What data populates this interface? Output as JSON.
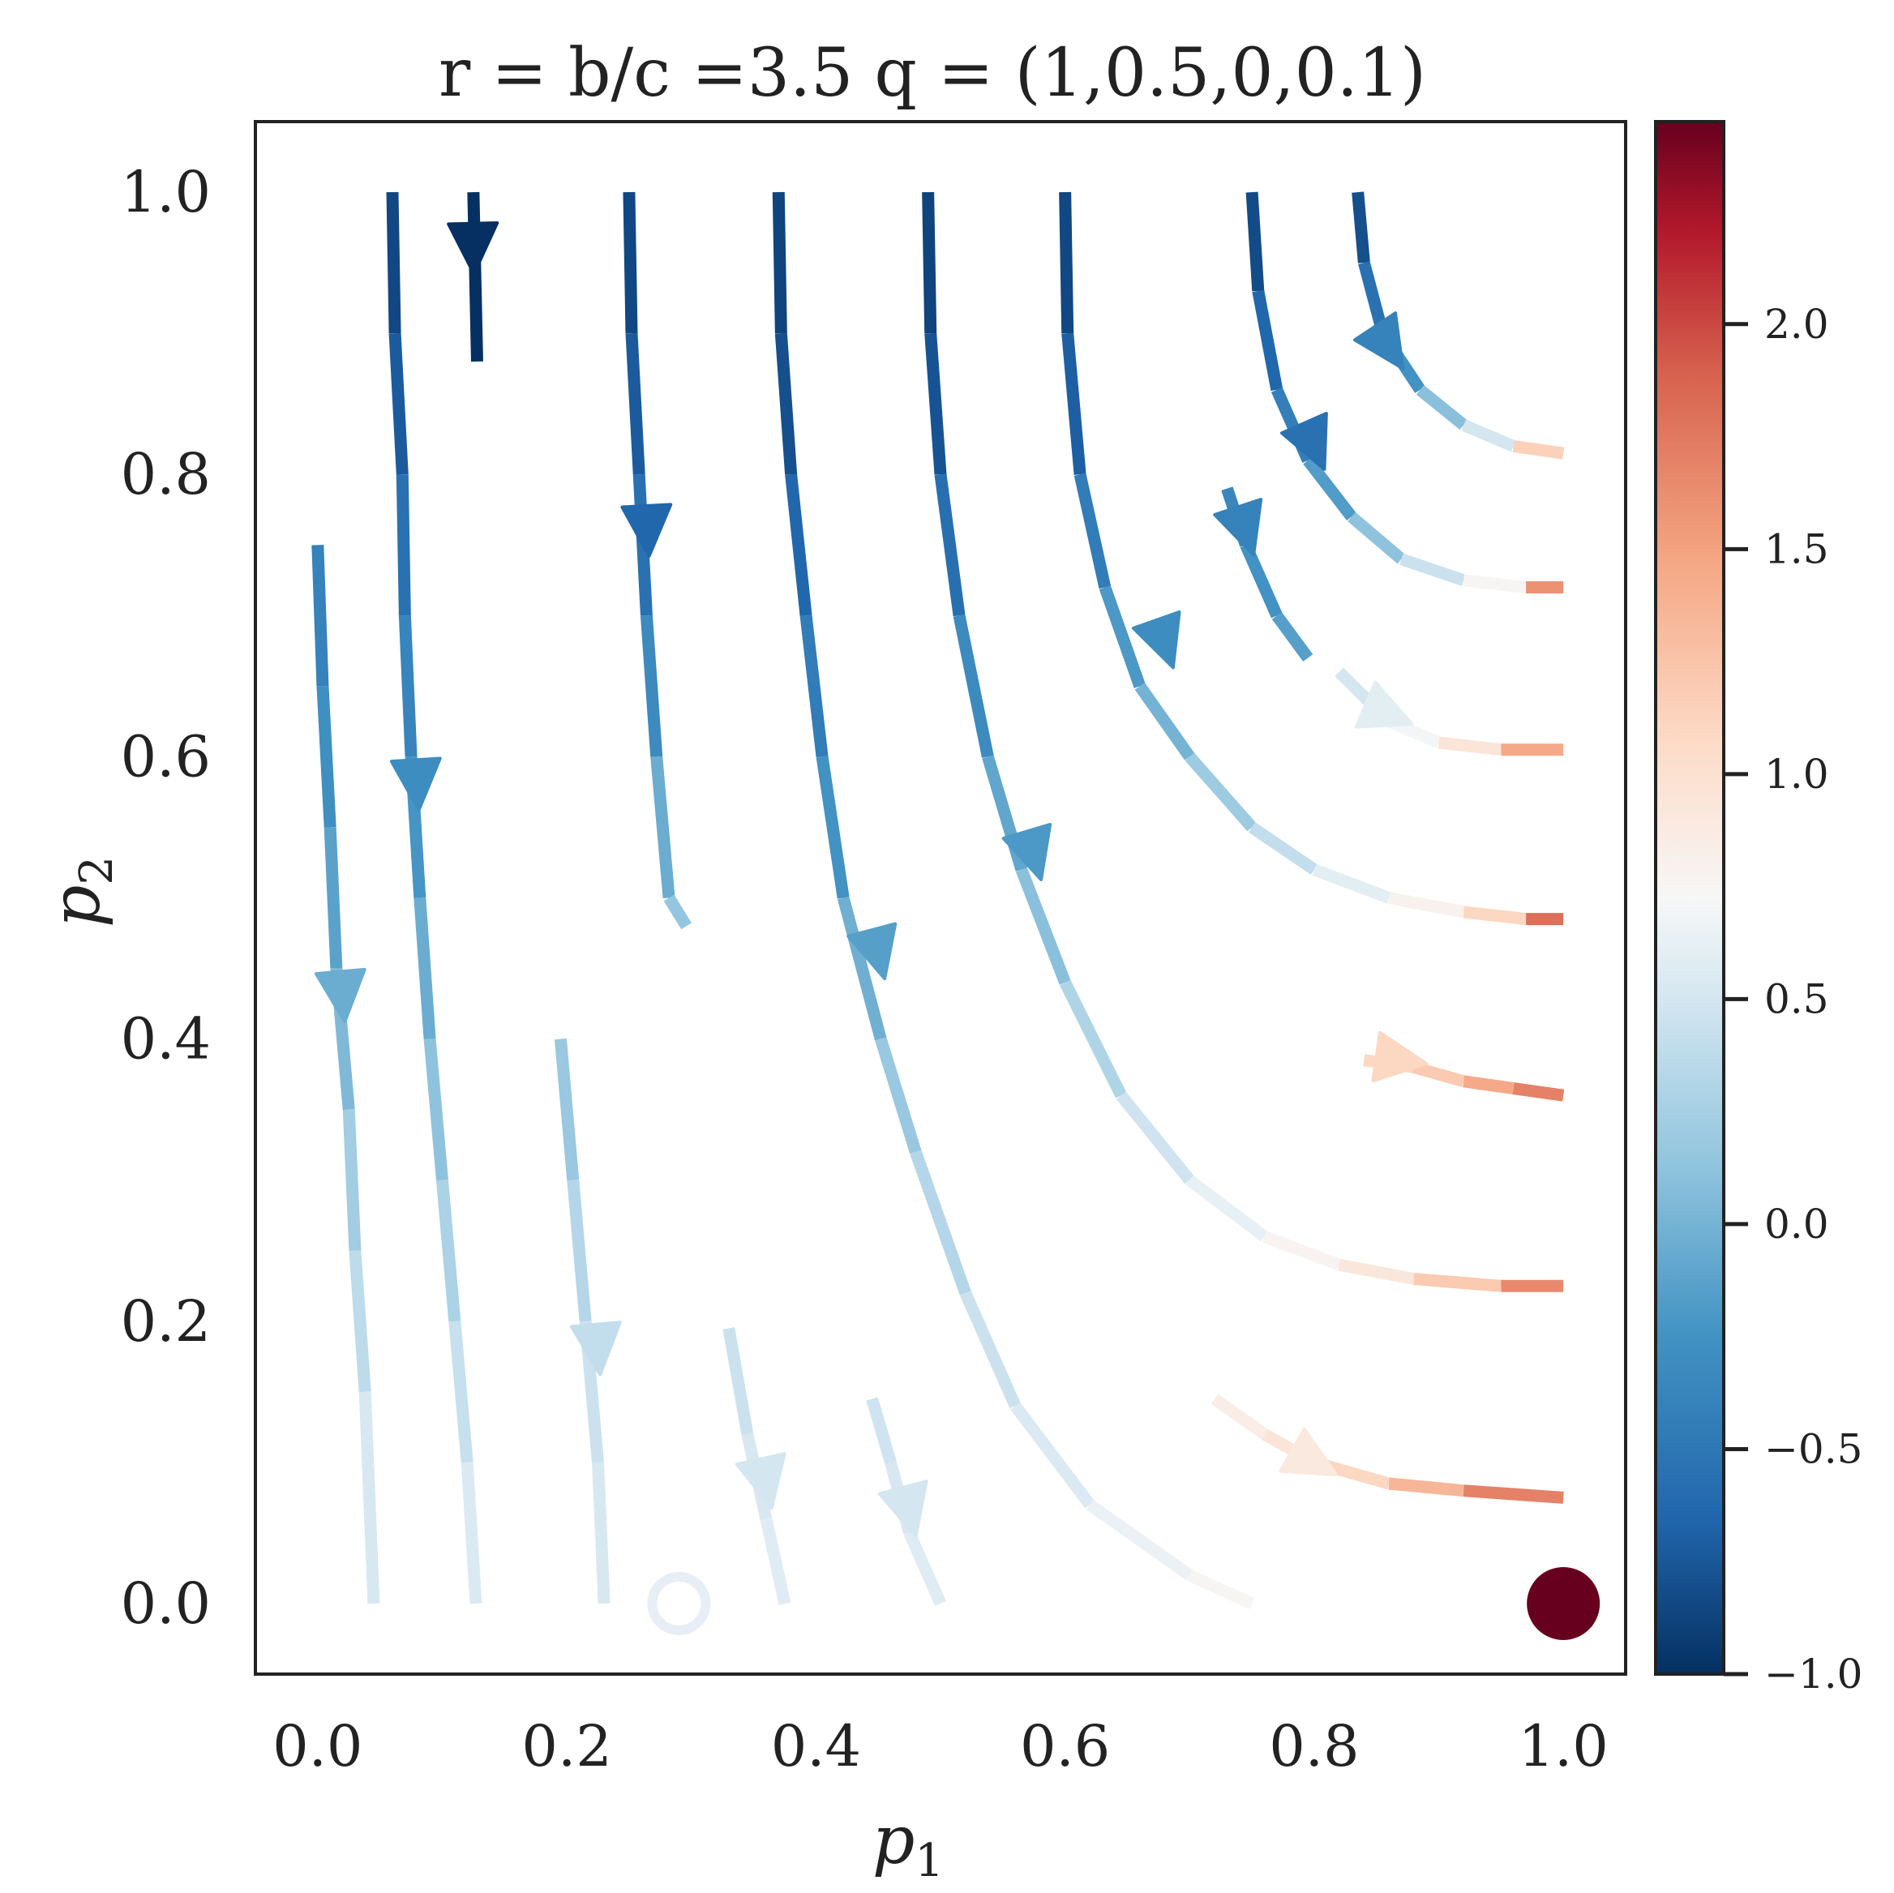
{
  "chart_data": {
    "type": "streamplot",
    "title": "r = b/c =3.5 q = (1,0.5,0,0.1)",
    "xlabel": {
      "main": "p",
      "sub": "1"
    },
    "ylabel": {
      "main": "p",
      "sub": "2"
    },
    "xlim": [
      -0.05,
      1.05
    ],
    "ylim": [
      -0.05,
      1.05
    ],
    "xticks": [
      0.0,
      0.2,
      0.4,
      0.6,
      0.8,
      1.0
    ],
    "xtick_labels": [
      "0.0",
      "0.2",
      "0.4",
      "0.6",
      "0.8",
      "1.0"
    ],
    "yticks": [
      0.0,
      0.2,
      0.4,
      0.6,
      0.8,
      1.0
    ],
    "ytick_labels": [
      "0.0",
      "0.2",
      "0.4",
      "0.6",
      "0.8",
      "1.0"
    ],
    "colormap": "RdBu_r",
    "colorbar": {
      "range": [
        -1.0,
        2.45
      ],
      "ticks": [
        -1.0,
        -0.5,
        0.0,
        0.5,
        1.0,
        1.5,
        2.0
      ],
      "tick_labels": [
        "−1.0",
        "−0.5",
        "0.0",
        "0.5",
        "1.0",
        "1.5",
        "2.0"
      ]
    },
    "grid": false,
    "streamlines": [
      {
        "points": [
          [
            0.125,
            1.0
          ],
          [
            0.128,
            0.88
          ]
        ],
        "color_value": -1.0,
        "arrow_at": [
          0.125,
          0.96
        ]
      },
      {
        "points": [
          [
            0.06,
            1.0
          ],
          [
            0.062,
            0.9
          ],
          [
            0.068,
            0.8
          ],
          [
            0.07,
            0.7
          ],
          [
            0.075,
            0.6
          ],
          [
            0.082,
            0.5
          ],
          [
            0.09,
            0.4
          ],
          [
            0.1,
            0.3
          ],
          [
            0.11,
            0.2
          ],
          [
            0.12,
            0.1
          ],
          [
            0.127,
            0.0
          ]
        ],
        "color_values": [
          -0.9,
          -0.8,
          -0.65,
          -0.45,
          -0.3,
          -0.15,
          0.05,
          0.2,
          0.35,
          0.5,
          0.6
        ],
        "arrow_at": [
          0.08,
          0.58
        ]
      },
      {
        "points": [
          [
            0.0,
            0.75
          ],
          [
            0.004,
            0.65
          ],
          [
            0.01,
            0.55
          ],
          [
            0.015,
            0.45
          ],
          [
            0.025,
            0.35
          ],
          [
            0.03,
            0.25
          ],
          [
            0.038,
            0.15
          ],
          [
            0.045,
            0.0
          ]
        ],
        "color_values": [
          -0.45,
          -0.35,
          -0.2,
          -0.05,
          0.15,
          0.3,
          0.45,
          0.6
        ],
        "arrow_at": [
          0.02,
          0.43
        ]
      },
      {
        "points": [
          [
            0.25,
            1.0
          ],
          [
            0.252,
            0.9
          ],
          [
            0.258,
            0.8
          ],
          [
            0.264,
            0.7
          ],
          [
            0.272,
            0.6
          ],
          [
            0.282,
            0.5
          ],
          [
            0.296,
            0.48
          ]
        ],
        "color_values": [
          -0.9,
          -0.8,
          -0.65,
          -0.45,
          -0.2,
          0.1,
          0.2
        ],
        "arrow_at": [
          0.265,
          0.76
        ]
      },
      {
        "points": [
          [
            0.37,
            1.0
          ],
          [
            0.372,
            0.9
          ],
          [
            0.38,
            0.8
          ],
          [
            0.392,
            0.7
          ],
          [
            0.405,
            0.6
          ],
          [
            0.422,
            0.5
          ],
          [
            0.452,
            0.4
          ],
          [
            0.48,
            0.32
          ],
          [
            0.52,
            0.22
          ],
          [
            0.56,
            0.14
          ],
          [
            0.62,
            0.07
          ],
          [
            0.7,
            0.02
          ],
          [
            0.75,
            0.0
          ]
        ],
        "color_values": [
          -0.9,
          -0.85,
          -0.75,
          -0.55,
          -0.35,
          -0.15,
          0.1,
          0.25,
          0.4,
          0.5,
          0.6,
          0.7,
          0.8
        ],
        "arrow_at": [
          0.45,
          0.46
        ]
      },
      {
        "points": [
          [
            0.49,
            1.0
          ],
          [
            0.492,
            0.9
          ],
          [
            0.5,
            0.8
          ],
          [
            0.515,
            0.7
          ],
          [
            0.538,
            0.6
          ],
          [
            0.565,
            0.52
          ],
          [
            0.6,
            0.44
          ],
          [
            0.645,
            0.36
          ],
          [
            0.7,
            0.3
          ],
          [
            0.76,
            0.26
          ],
          [
            0.82,
            0.24
          ],
          [
            0.88,
            0.23
          ],
          [
            0.95,
            0.225
          ],
          [
            1.0,
            0.225
          ]
        ],
        "color_values": [
          -0.9,
          -0.85,
          -0.7,
          -0.45,
          -0.2,
          0.0,
          0.2,
          0.4,
          0.55,
          0.7,
          0.85,
          1.0,
          1.4,
          1.9
        ],
        "arrow_at": [
          0.575,
          0.53
        ]
      },
      {
        "points": [
          [
            0.6,
            1.0
          ],
          [
            0.602,
            0.9
          ],
          [
            0.612,
            0.8
          ],
          [
            0.632,
            0.72
          ],
          [
            0.66,
            0.65
          ],
          [
            0.7,
            0.6
          ],
          [
            0.75,
            0.55
          ],
          [
            0.8,
            0.52
          ],
          [
            0.86,
            0.5
          ],
          [
            0.92,
            0.49
          ],
          [
            0.97,
            0.485
          ],
          [
            1.0,
            0.485
          ]
        ],
        "color_values": [
          -0.9,
          -0.8,
          -0.6,
          -0.3,
          -0.1,
          0.1,
          0.3,
          0.5,
          0.7,
          0.9,
          1.3,
          2.3
        ],
        "arrow_at": [
          0.68,
          0.68
        ]
      },
      {
        "points": [
          [
            0.75,
            1.0
          ],
          [
            0.755,
            0.93
          ],
          [
            0.77,
            0.86
          ],
          [
            0.795,
            0.81
          ],
          [
            0.83,
            0.77
          ],
          [
            0.87,
            0.74
          ],
          [
            0.92,
            0.725
          ],
          [
            0.97,
            0.72
          ],
          [
            1.0,
            0.72
          ]
        ],
        "color_values": [
          -0.9,
          -0.75,
          -0.55,
          -0.3,
          -0.05,
          0.3,
          0.6,
          0.9,
          2.3
        ],
        "arrow_at": [
          0.8,
          0.82
        ]
      },
      {
        "points": [
          [
            0.835,
            1.0
          ],
          [
            0.84,
            0.95
          ],
          [
            0.855,
            0.9
          ],
          [
            0.885,
            0.86
          ],
          [
            0.92,
            0.835
          ],
          [
            0.96,
            0.82
          ],
          [
            1.0,
            0.815
          ]
        ],
        "color_values": [
          -0.9,
          -0.7,
          -0.4,
          -0.1,
          0.3,
          0.7,
          1.6
        ],
        "arrow_at": [
          0.86,
          0.89
        ]
      },
      {
        "points": [
          [
            0.73,
            0.79
          ],
          [
            0.745,
            0.75
          ],
          [
            0.77,
            0.7
          ],
          [
            0.795,
            0.67
          ]
        ],
        "color_values": [
          -0.4,
          -0.3,
          -0.2,
          -0.1
        ],
        "arrow_at": [
          0.745,
          0.76
        ]
      },
      {
        "points": [
          [
            0.82,
            0.66
          ],
          [
            0.86,
            0.625
          ],
          [
            0.9,
            0.61
          ],
          [
            0.95,
            0.605
          ],
          [
            1.0,
            0.605
          ]
        ],
        "color_values": [
          0.4,
          0.6,
          0.8,
          1.1,
          1.8
        ],
        "arrow_at": [
          0.86,
          0.63
        ]
      },
      {
        "points": [
          [
            0.84,
            0.385
          ],
          [
            0.88,
            0.38
          ],
          [
            0.92,
            0.37
          ],
          [
            0.96,
            0.365
          ],
          [
            1.0,
            0.36
          ]
        ],
        "color_values": [
          1.1,
          1.1,
          1.3,
          1.6,
          1.8
        ],
        "arrow_at": [
          0.87,
          0.385
        ]
      },
      {
        "points": [
          [
            0.72,
            0.145
          ],
          [
            0.76,
            0.12
          ],
          [
            0.8,
            0.1
          ],
          [
            0.86,
            0.085
          ],
          [
            0.92,
            0.08
          ],
          [
            1.0,
            0.075
          ]
        ],
        "color_values": [
          0.8,
          0.9,
          1.0,
          1.2,
          1.5,
          1.9
        ],
        "arrow_at": [
          0.8,
          0.1
        ]
      },
      {
        "points": [
          [
            0.195,
            0.4
          ],
          [
            0.205,
            0.3
          ],
          [
            0.215,
            0.2
          ],
          [
            0.225,
            0.1
          ],
          [
            0.23,
            0.0
          ]
        ],
        "color_values": [
          0.1,
          0.25,
          0.4,
          0.5,
          0.55
        ],
        "arrow_at": [
          0.225,
          0.18
        ]
      },
      {
        "points": [
          [
            0.33,
            0.195
          ],
          [
            0.345,
            0.12
          ],
          [
            0.36,
            0.06
          ],
          [
            0.375,
            0.0
          ]
        ],
        "color_values": [
          0.4,
          0.5,
          0.55,
          0.6
        ],
        "arrow_at": [
          0.36,
          0.085
        ]
      },
      {
        "points": [
          [
            0.445,
            0.145
          ],
          [
            0.46,
            0.1
          ],
          [
            0.475,
            0.05
          ],
          [
            0.5,
            0.0
          ]
        ],
        "color_values": [
          0.45,
          0.5,
          0.55,
          0.6
        ],
        "arrow_at": [
          0.475,
          0.065
        ]
      }
    ],
    "fixed_points": [
      {
        "x": 0.29,
        "y": 0.0,
        "style": "open",
        "color_value": 0.6
      },
      {
        "x": 1.0,
        "y": 0.0,
        "style": "filled",
        "color_value": 2.45
      }
    ]
  }
}
